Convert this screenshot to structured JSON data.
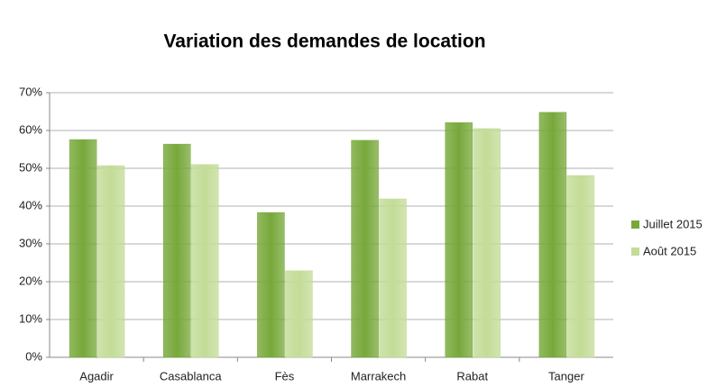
{
  "chart_data": {
    "type": "bar",
    "title": "Variation des demandes de location",
    "categories": [
      "Agadir",
      "Casablanca",
      "Fès",
      "Marrakech",
      "Rabat",
      "Tanger"
    ],
    "series": [
      {
        "name": "Juillet 2015",
        "color": "#77a83a",
        "values": [
          57.6,
          56.4,
          38.3,
          57.4,
          62.1,
          64.8
        ]
      },
      {
        "name": "Août 2015",
        "color": "#c3dc97",
        "values": [
          50.7,
          51,
          22.9,
          41.9,
          60.5,
          48.1
        ]
      }
    ],
    "ylim": [
      0,
      70
    ],
    "yticks": [
      {
        "value": 0,
        "label": "0%"
      },
      {
        "value": 10,
        "label": "10%"
      },
      {
        "value": 20,
        "label": "20%"
      },
      {
        "value": 30,
        "label": "30%"
      },
      {
        "value": 40,
        "label": "40%"
      },
      {
        "value": 50,
        "label": "50%"
      },
      {
        "value": 60,
        "label": "60%"
      },
      {
        "value": 70,
        "label": "70%"
      }
    ],
    "grid": true,
    "legend": "right"
  }
}
